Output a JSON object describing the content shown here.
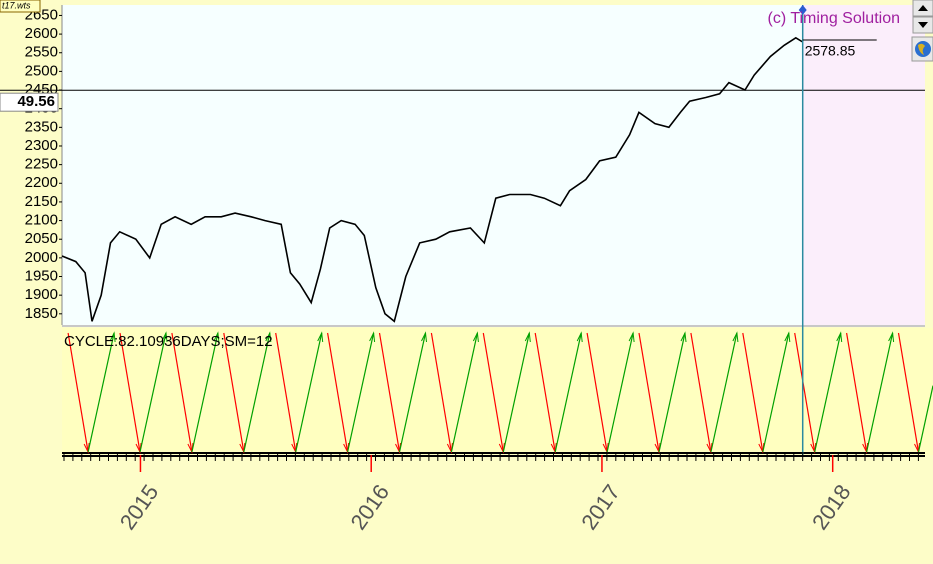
{
  "tab": "t17.wts",
  "chart_data": {
    "type": "line",
    "copyright": "(c) Timing Solution",
    "cycle_label": "CYCLE:82.10936DAYS;SM=12",
    "hline": {
      "value": 2449.56,
      "label": "49.56"
    },
    "color": "#000000",
    "x": [
      2014.66,
      2014.72,
      2014.76,
      2014.79,
      2014.83,
      2014.87,
      2014.91,
      2014.98,
      2015.04,
      2015.09,
      2015.15,
      2015.22,
      2015.28,
      2015.35,
      2015.41,
      2015.48,
      2015.54,
      2015.61,
      2015.65,
      2015.69,
      2015.74,
      2015.78,
      2015.82,
      2015.87,
      2015.93,
      2015.97,
      2016.02,
      2016.06,
      2016.1,
      2016.15,
      2016.21,
      2016.28,
      2016.34,
      2016.43,
      2016.49,
      2016.54,
      2016.6,
      2016.69,
      2016.75,
      2016.82,
      2016.86,
      2016.93,
      2016.99,
      2017.06,
      2017.12,
      2017.16,
      2017.23,
      2017.29,
      2017.34,
      2017.38,
      2017.45,
      2017.51,
      2017.55,
      2017.62,
      2017.66,
      2017.73,
      2017.79,
      2017.84,
      2017.87
    ],
    "values": [
      2005,
      1990,
      1960,
      1830,
      1900,
      2040,
      2070,
      2050,
      2000,
      2090,
      2110,
      2090,
      2110,
      2110,
      2120,
      2110,
      2100,
      2090,
      1960,
      1930,
      1880,
      1970,
      2080,
      2100,
      2090,
      2060,
      1920,
      1850,
      1830,
      1950,
      2040,
      2050,
      2070,
      2080,
      2040,
      2160,
      2170,
      2170,
      2160,
      2140,
      2180,
      2210,
      2260,
      2270,
      2330,
      2390,
      2360,
      2350,
      2390,
      2420,
      2430,
      2440,
      2470,
      2450,
      2490,
      2540,
      2570,
      2590,
      2578.85
    ],
    "xlim": [
      2014.66,
      2018.4
    ],
    "xticks": [
      2015,
      2016,
      2017,
      2018
    ],
    "ylim": [
      1820,
      2678
    ],
    "yticks": [
      1850,
      1900,
      1950,
      2000,
      2050,
      2100,
      2150,
      2200,
      2250,
      2300,
      2350,
      2400,
      2450,
      2500,
      2550,
      2600,
      2650
    ]
  }
}
